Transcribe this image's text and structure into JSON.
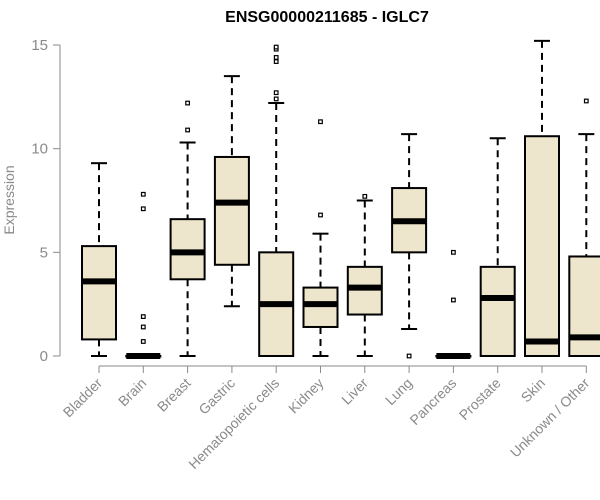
{
  "chart_data": {
    "type": "box",
    "title": "ENSG00000211685 - IGLC7",
    "xlabel": "",
    "ylabel": "Expression",
    "ylim": [
      0,
      15
    ],
    "yticks": [
      0,
      5,
      10,
      15
    ],
    "grid": false,
    "colors": {
      "box_fill": "#ede5cc",
      "stroke": "#000000",
      "axis": "#8a8a8a"
    },
    "categories": [
      "Bladder",
      "Brain",
      "Breast",
      "Gastric",
      "Hematopoietic cells",
      "Kidney",
      "Liver",
      "Lung",
      "Pancreas",
      "Prostate",
      "Skin",
      "Unknown / Other"
    ],
    "boxes": [
      {
        "name": "Bladder",
        "whisker_low": 0,
        "q1": 0.8,
        "median": 3.6,
        "q3": 5.3,
        "whisker_high": 9.3,
        "outliers": []
      },
      {
        "name": "Brain",
        "whisker_low": 0,
        "q1": 0,
        "median": 0,
        "q3": 0,
        "whisker_high": 0,
        "outliers": [
          0.7,
          1.4,
          1.9,
          7.1,
          7.8
        ]
      },
      {
        "name": "Breast",
        "whisker_low": 0,
        "q1": 3.7,
        "median": 5.0,
        "q3": 6.6,
        "whisker_high": 10.3,
        "outliers": [
          10.9,
          12.2
        ]
      },
      {
        "name": "Gastric",
        "whisker_low": 2.4,
        "q1": 4.4,
        "median": 7.4,
        "q3": 9.6,
        "whisker_high": 13.5,
        "outliers": []
      },
      {
        "name": "Hematopoietic cells",
        "whisker_low": 0,
        "q1": 0,
        "median": 2.5,
        "q3": 5.0,
        "whisker_high": 12.2,
        "outliers": [
          12.4,
          12.7,
          14.2,
          14.4,
          14.8,
          14.9
        ]
      },
      {
        "name": "Kidney",
        "whisker_low": 0,
        "q1": 1.4,
        "median": 2.5,
        "q3": 3.3,
        "whisker_high": 5.9,
        "outliers": [
          6.8,
          11.3
        ]
      },
      {
        "name": "Liver",
        "whisker_low": 0,
        "q1": 2.0,
        "median": 3.3,
        "q3": 4.3,
        "whisker_high": 7.5,
        "outliers": [
          7.7
        ]
      },
      {
        "name": "Lung",
        "whisker_low": 1.3,
        "q1": 5.0,
        "median": 6.5,
        "q3": 8.1,
        "whisker_high": 10.7,
        "outliers": [
          0
        ]
      },
      {
        "name": "Pancreas",
        "whisker_low": 0,
        "q1": 0,
        "median": 0,
        "q3": 0,
        "whisker_high": 0,
        "outliers": [
          2.7,
          5.0
        ]
      },
      {
        "name": "Prostate",
        "whisker_low": 0,
        "q1": 0,
        "median": 2.8,
        "q3": 4.3,
        "whisker_high": 10.5,
        "outliers": []
      },
      {
        "name": "Skin",
        "whisker_low": 0,
        "q1": 0,
        "median": 0.7,
        "q3": 10.6,
        "whisker_high": 15.2,
        "outliers": []
      },
      {
        "name": "Unknown / Other",
        "whisker_low": 0,
        "q1": 0,
        "median": 0.9,
        "q3": 4.8,
        "whisker_high": 10.7,
        "outliers": [
          12.3
        ]
      }
    ]
  }
}
